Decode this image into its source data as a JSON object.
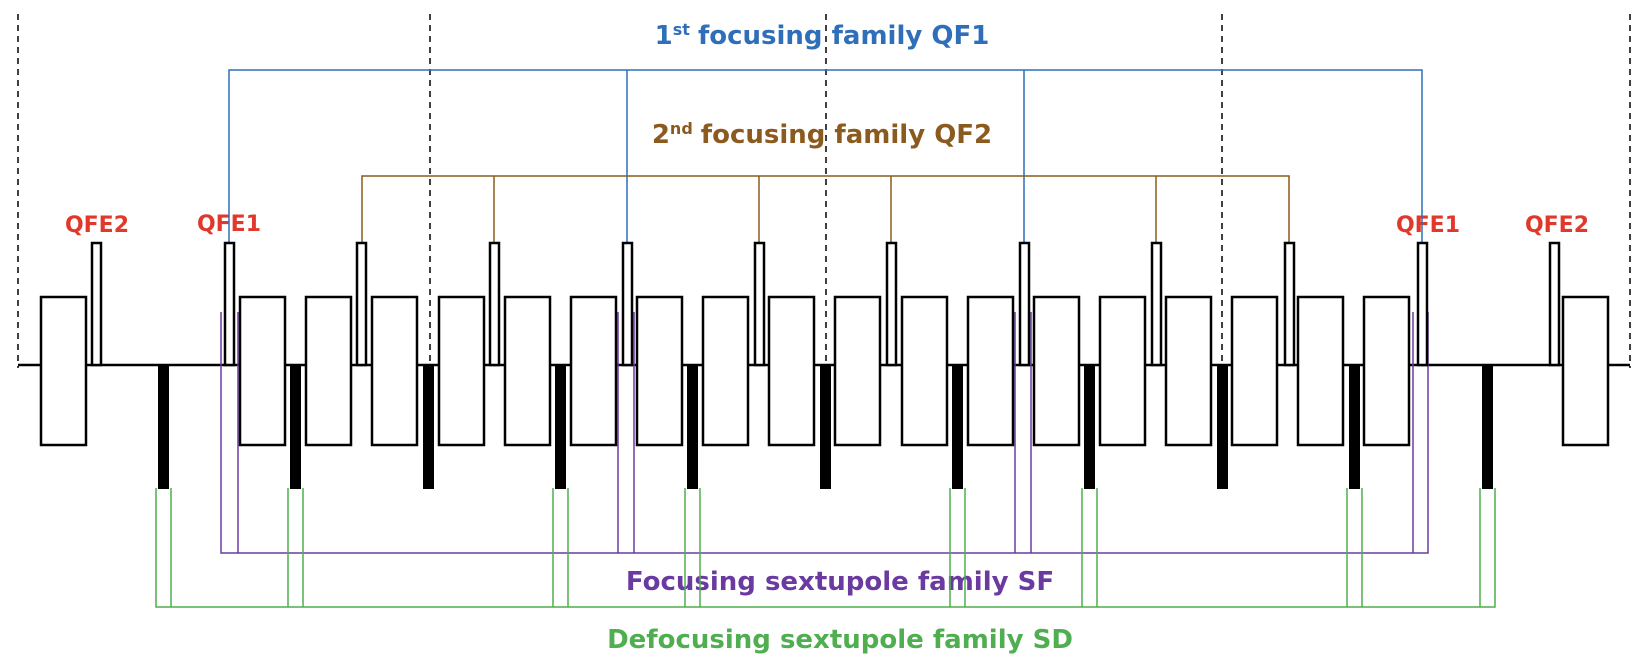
{
  "titles": {
    "qf1": {
      "text": "focusing family QF1",
      "ordinal": "1",
      "suffix": "st"
    },
    "qf2": {
      "text": "focusing family QF2",
      "ordinal": "2",
      "suffix": "nd"
    },
    "sf": "Focusing sextupole family SF",
    "sd": "Defocusing sextupole family SD"
  },
  "labels": {
    "qfe2_left": "QFE2",
    "qfe1_left": "QFE1",
    "qfe1_right": "QFE1",
    "qfe2_right": "QFE2"
  },
  "colors": {
    "qf1": "#2f6fba",
    "qf2": "#8a5a1e",
    "sf": "#6a3aa0",
    "sd": "#4fae4f",
    "edge_label": "#e0392b",
    "line": "#000000"
  }
}
